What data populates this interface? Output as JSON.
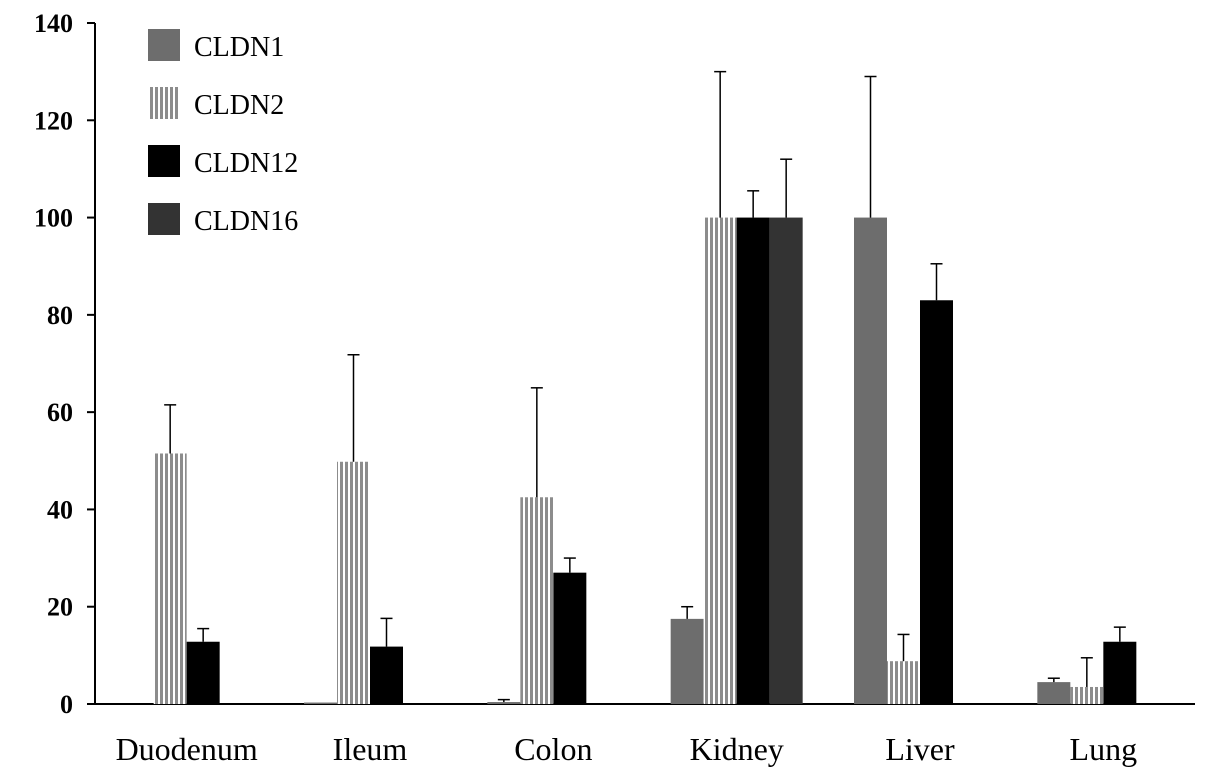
{
  "chart_data": {
    "type": "bar",
    "categories": [
      "Duodenum",
      "Ileum",
      "Colon",
      "Kidney",
      "Liver",
      "Lung"
    ],
    "ylim": [
      0,
      140
    ],
    "yticks": [
      0,
      20,
      40,
      60,
      80,
      100,
      120,
      140
    ],
    "grid": false,
    "legend_position": "top-left",
    "series": [
      {
        "name": "CLDN1",
        "color": "#6d6d6d",
        "pattern": "solid",
        "values": [
          0,
          0.3,
          0.4,
          17.5,
          100,
          4.5
        ],
        "errors": [
          0,
          0,
          0.5,
          2.5,
          29,
          0.8
        ]
      },
      {
        "name": "CLDN2",
        "color": "#9a9a9a",
        "pattern": "vertical-stripes",
        "values": [
          51.5,
          49.8,
          42.5,
          100,
          8.8,
          3.5
        ],
        "errors": [
          10,
          22,
          22.5,
          30,
          5.5,
          6
        ]
      },
      {
        "name": "CLDN12",
        "color": "#000000",
        "pattern": "solid",
        "values": [
          12.8,
          11.8,
          27,
          100,
          83,
          12.8
        ],
        "errors": [
          2.7,
          5.8,
          3,
          5.5,
          7.5,
          3
        ]
      },
      {
        "name": "CLDN16",
        "color": "#333333",
        "pattern": "solid",
        "values": [
          0,
          0,
          0,
          100,
          0,
          0
        ],
        "errors": [
          0,
          0,
          0,
          12,
          0,
          0
        ]
      }
    ]
  }
}
